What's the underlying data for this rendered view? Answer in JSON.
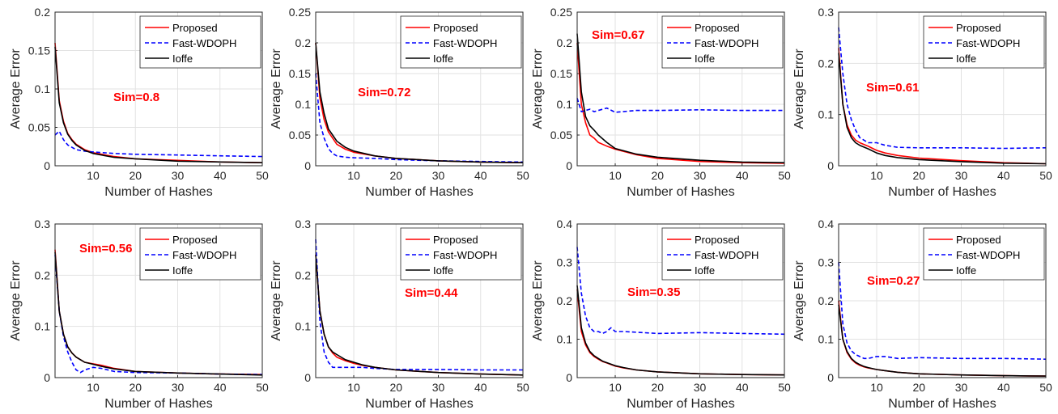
{
  "colors": {
    "proposed": "#ff0000",
    "fast_wdoph": "#0000ff",
    "ioffe": "#000000",
    "annotation": "#ff0000"
  },
  "chart_data": [
    {
      "type": "line",
      "xlabel": "Number of Hashes",
      "ylabel": "Average Error",
      "xlim": [
        1,
        50
      ],
      "ylim": [
        0,
        0.2
      ],
      "xticks": [
        "10",
        "20",
        "30",
        "40",
        "50"
      ],
      "yticks": [
        "0",
        "0.05",
        "0.1",
        "0.15",
        "0.2"
      ],
      "legend": "top-right",
      "grid": true,
      "annotation": "Sim=0.8",
      "x": [
        1,
        2,
        3,
        4,
        5,
        6,
        8,
        10,
        15,
        20,
        30,
        40,
        50
      ],
      "series": [
        {
          "name": "Proposed",
          "values": [
            0.16,
            0.085,
            0.058,
            0.042,
            0.034,
            0.028,
            0.021,
            0.017,
            0.012,
            0.009,
            0.007,
            0.005,
            0.004
          ]
        },
        {
          "name": "Fast-WDOPH",
          "values": [
            0.04,
            0.045,
            0.034,
            0.027,
            0.024,
            0.021,
            0.019,
            0.018,
            0.016,
            0.015,
            0.014,
            0.013,
            0.012
          ]
        },
        {
          "name": "Ioffe",
          "values": [
            0.155,
            0.082,
            0.056,
            0.041,
            0.033,
            0.027,
            0.02,
            0.016,
            0.011,
            0.009,
            0.006,
            0.005,
            0.004
          ]
        }
      ]
    },
    {
      "type": "line",
      "xlabel": "Number of Hashes",
      "ylabel": "Average Error",
      "xlim": [
        1,
        50
      ],
      "ylim": [
        0,
        0.25
      ],
      "xticks": [
        "10",
        "20",
        "30",
        "40",
        "50"
      ],
      "yticks": [
        "0",
        "0.05",
        "0.1",
        "0.15",
        "0.2",
        "0.25"
      ],
      "legend": "top-right",
      "grid": true,
      "annotation": "Sim=0.72",
      "x": [
        1,
        2,
        3,
        4,
        5,
        6,
        8,
        10,
        15,
        20,
        30,
        40,
        50
      ],
      "series": [
        {
          "name": "Proposed",
          "values": [
            0.2,
            0.11,
            0.075,
            0.055,
            0.045,
            0.035,
            0.027,
            0.022,
            0.016,
            0.012,
            0.008,
            0.006,
            0.005
          ]
        },
        {
          "name": "Fast-WDOPH",
          "values": [
            0.15,
            0.07,
            0.045,
            0.028,
            0.02,
            0.016,
            0.014,
            0.013,
            0.012,
            0.01,
            0.008,
            0.007,
            0.006
          ]
        },
        {
          "name": "Ioffe",
          "values": [
            0.2,
            0.12,
            0.085,
            0.06,
            0.05,
            0.04,
            0.03,
            0.024,
            0.016,
            0.012,
            0.008,
            0.006,
            0.005
          ]
        }
      ]
    },
    {
      "type": "line",
      "xlabel": "Number of Hashes",
      "ylabel": "Average Error",
      "xlim": [
        1,
        50
      ],
      "ylim": [
        0,
        0.25
      ],
      "xticks": [
        "10",
        "20",
        "30",
        "40",
        "50"
      ],
      "yticks": [
        "0",
        "0.05",
        "0.1",
        "0.15",
        "0.2",
        "0.25"
      ],
      "legend": "top-right",
      "grid": true,
      "annotation": "Sim=0.67",
      "x": [
        1,
        2,
        3,
        4,
        5,
        6,
        8,
        10,
        15,
        20,
        30,
        40,
        50
      ],
      "series": [
        {
          "name": "Proposed",
          "values": [
            0.2,
            0.1,
            0.07,
            0.05,
            0.045,
            0.038,
            0.032,
            0.027,
            0.018,
            0.012,
            0.007,
            0.005,
            0.004
          ]
        },
        {
          "name": "Fast-WDOPH",
          "values": [
            0.11,
            0.088,
            0.09,
            0.092,
            0.088,
            0.09,
            0.094,
            0.087,
            0.09,
            0.09,
            0.091,
            0.09,
            0.09
          ]
        },
        {
          "name": "Ioffe",
          "values": [
            0.215,
            0.12,
            0.08,
            0.065,
            0.058,
            0.05,
            0.038,
            0.028,
            0.019,
            0.014,
            0.009,
            0.006,
            0.005
          ]
        }
      ]
    },
    {
      "type": "line",
      "xlabel": "Number of Hashes",
      "ylabel": "Average Error",
      "xlim": [
        1,
        50
      ],
      "ylim": [
        0,
        0.3
      ],
      "xticks": [
        "10",
        "20",
        "30",
        "40",
        "50"
      ],
      "yticks": [
        "0",
        "0.1",
        "0.2",
        "0.3"
      ],
      "legend": "top-right",
      "grid": true,
      "annotation": "Sim=0.61",
      "x": [
        1,
        2,
        3,
        4,
        5,
        6,
        8,
        10,
        12,
        15,
        20,
        30,
        40,
        50
      ],
      "series": [
        {
          "name": "Proposed",
          "values": [
            0.23,
            0.12,
            0.08,
            0.06,
            0.05,
            0.045,
            0.038,
            0.03,
            0.025,
            0.02,
            0.015,
            0.01,
            0.006,
            0.004
          ]
        },
        {
          "name": "Fast-WDOPH",
          "values": [
            0.27,
            0.18,
            0.12,
            0.09,
            0.07,
            0.055,
            0.045,
            0.045,
            0.04,
            0.036,
            0.035,
            0.035,
            0.034,
            0.035
          ]
        },
        {
          "name": "Ioffe",
          "values": [
            0.22,
            0.12,
            0.075,
            0.055,
            0.045,
            0.04,
            0.033,
            0.025,
            0.02,
            0.016,
            0.012,
            0.008,
            0.005,
            0.004
          ]
        }
      ]
    },
    {
      "type": "line",
      "xlabel": "Number of Hashes",
      "ylabel": "Average Error",
      "xlim": [
        1,
        50
      ],
      "ylim": [
        0,
        0.3
      ],
      "xticks": [
        "10",
        "20",
        "30",
        "40",
        "50"
      ],
      "yticks": [
        "0",
        "0.1",
        "0.2",
        "0.3"
      ],
      "legend": "top-right",
      "grid": true,
      "annotation": "Sim=0.56",
      "x": [
        1,
        2,
        3,
        4,
        5,
        6,
        7,
        8,
        10,
        12,
        15,
        20,
        30,
        40,
        50
      ],
      "series": [
        {
          "name": "Proposed",
          "values": [
            0.25,
            0.13,
            0.085,
            0.06,
            0.048,
            0.04,
            0.035,
            0.03,
            0.027,
            0.024,
            0.018,
            0.012,
            0.009,
            0.007,
            0.006
          ]
        },
        {
          "name": "Fast-WDOPH",
          "values": [
            0.24,
            0.13,
            0.08,
            0.05,
            0.03,
            0.015,
            0.01,
            0.015,
            0.02,
            0.018,
            0.012,
            0.01,
            0.009,
            0.007,
            0.006
          ]
        },
        {
          "name": "Ioffe",
          "values": [
            0.245,
            0.13,
            0.085,
            0.06,
            0.048,
            0.04,
            0.035,
            0.03,
            0.026,
            0.022,
            0.017,
            0.012,
            0.009,
            0.007,
            0.005
          ]
        }
      ]
    },
    {
      "type": "line",
      "xlabel": "Number of Hashes",
      "ylabel": "Average Error",
      "xlim": [
        1,
        50
      ],
      "ylim": [
        0,
        0.3
      ],
      "xticks": [
        "10",
        "20",
        "30",
        "40",
        "50"
      ],
      "yticks": [
        "0",
        "0.1",
        "0.2",
        "0.3"
      ],
      "legend": "top-right",
      "grid": true,
      "annotation": "Sim=0.44",
      "x": [
        1,
        2,
        3,
        4,
        5,
        6,
        8,
        10,
        12,
        15,
        20,
        30,
        40,
        50
      ],
      "series": [
        {
          "name": "Proposed",
          "values": [
            0.24,
            0.13,
            0.085,
            0.06,
            0.048,
            0.04,
            0.033,
            0.028,
            0.024,
            0.02,
            0.015,
            0.01,
            0.007,
            0.005
          ]
        },
        {
          "name": "Fast-WDOPH",
          "values": [
            0.27,
            0.11,
            0.05,
            0.03,
            0.02,
            0.02,
            0.02,
            0.02,
            0.02,
            0.018,
            0.016,
            0.016,
            0.015,
            0.015
          ]
        },
        {
          "name": "Ioffe",
          "values": [
            0.24,
            0.13,
            0.085,
            0.06,
            0.05,
            0.045,
            0.035,
            0.03,
            0.025,
            0.02,
            0.015,
            0.01,
            0.007,
            0.005
          ]
        }
      ]
    },
    {
      "type": "line",
      "xlabel": "Number of Hashes",
      "ylabel": "Average Error",
      "xlim": [
        1,
        50
      ],
      "ylim": [
        0,
        0.4
      ],
      "xticks": [
        "10",
        "20",
        "30",
        "40",
        "50"
      ],
      "yticks": [
        "0",
        "0.1",
        "0.2",
        "0.3",
        "0.4"
      ],
      "legend": "top-right",
      "grid": true,
      "annotation": "Sim=0.35",
      "x": [
        1,
        2,
        3,
        4,
        5,
        6,
        7,
        8,
        9,
        10,
        12,
        15,
        20,
        30,
        40,
        50
      ],
      "series": [
        {
          "name": "Proposed",
          "values": [
            0.23,
            0.12,
            0.085,
            0.065,
            0.055,
            0.048,
            0.042,
            0.038,
            0.034,
            0.03,
            0.025,
            0.02,
            0.015,
            0.01,
            0.008,
            0.007
          ]
        },
        {
          "name": "Fast-WDOPH",
          "values": [
            0.34,
            0.22,
            0.16,
            0.13,
            0.12,
            0.12,
            0.115,
            0.12,
            0.13,
            0.12,
            0.12,
            0.118,
            0.115,
            0.117,
            0.115,
            0.113
          ]
        },
        {
          "name": "Ioffe",
          "values": [
            0.24,
            0.13,
            0.09,
            0.068,
            0.057,
            0.05,
            0.043,
            0.039,
            0.035,
            0.031,
            0.026,
            0.02,
            0.015,
            0.01,
            0.008,
            0.007
          ]
        }
      ]
    },
    {
      "type": "line",
      "xlabel": "Number of Hashes",
      "ylabel": "Average Error",
      "xlim": [
        1,
        50
      ],
      "ylim": [
        0,
        0.4
      ],
      "xticks": [
        "10",
        "20",
        "30",
        "40",
        "50"
      ],
      "yticks": [
        "0",
        "0.1",
        "0.2",
        "0.3",
        "0.4"
      ],
      "legend": "top-right",
      "grid": true,
      "annotation": "Sim=0.27",
      "x": [
        1,
        2,
        3,
        4,
        5,
        6,
        7,
        8,
        10,
        12,
        15,
        20,
        30,
        40,
        50
      ],
      "series": [
        {
          "name": "Proposed",
          "values": [
            0.2,
            0.1,
            0.065,
            0.048,
            0.038,
            0.032,
            0.028,
            0.025,
            0.021,
            0.018,
            0.014,
            0.01,
            0.007,
            0.005,
            0.004
          ]
        },
        {
          "name": "Fast-WDOPH",
          "values": [
            0.3,
            0.14,
            0.09,
            0.07,
            0.06,
            0.055,
            0.05,
            0.05,
            0.055,
            0.055,
            0.05,
            0.052,
            0.05,
            0.05,
            0.048
          ]
        },
        {
          "name": "Ioffe",
          "values": [
            0.19,
            0.1,
            0.068,
            0.05,
            0.04,
            0.034,
            0.029,
            0.026,
            0.021,
            0.018,
            0.014,
            0.01,
            0.007,
            0.005,
            0.004
          ]
        }
      ]
    }
  ]
}
